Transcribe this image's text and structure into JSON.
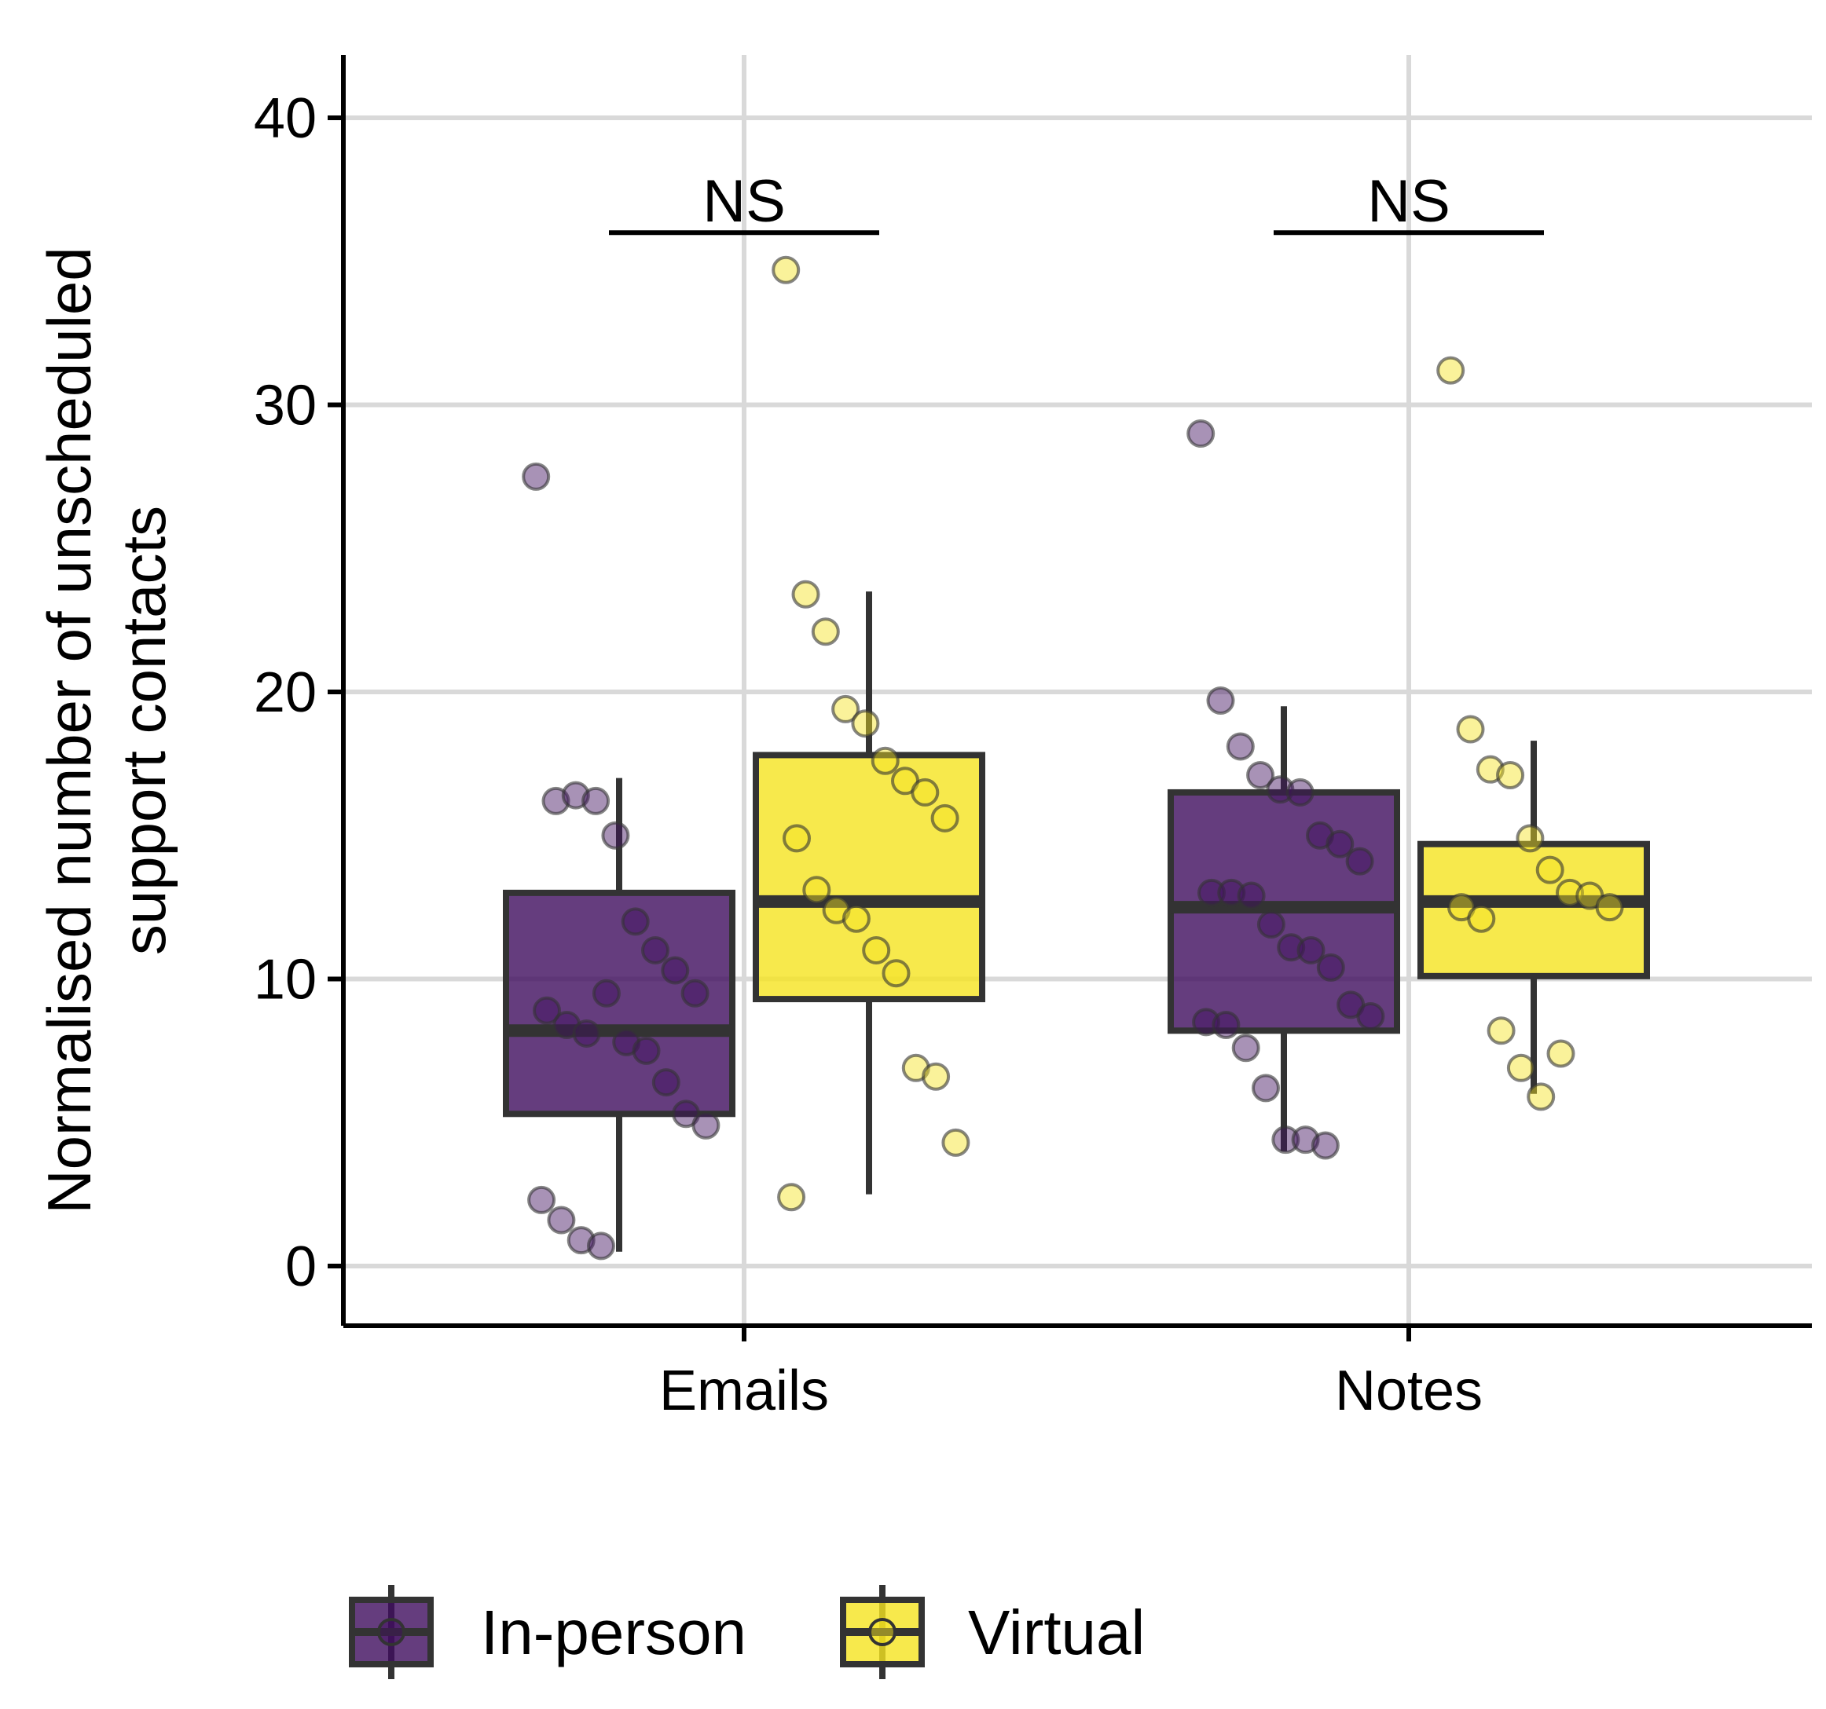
{
  "colors": {
    "in_person": "#3f0d5e",
    "virtual": "#f5e31f",
    "box_outline": "#333333",
    "grid": "#d9d9d9",
    "axis": "#000000"
  },
  "chart_data": {
    "type": "box",
    "ylabel_lines": [
      "Normalised number of unscheduled",
      "support contacts"
    ],
    "xlabel": "",
    "ylim": [
      -2,
      42
    ],
    "yticks": [
      0,
      10,
      20,
      30,
      40
    ],
    "categories": [
      "Emails",
      "Notes"
    ],
    "grid": true,
    "legend": {
      "placement": "bottom",
      "entries": [
        "In-person",
        "Virtual"
      ]
    },
    "significance": [
      {
        "category": "Emails",
        "label": "NS",
        "y": 36
      },
      {
        "category": "Notes",
        "label": "NS",
        "y": 36
      }
    ],
    "series": [
      {
        "name": "In-person",
        "color_key": "in_person",
        "boxes": [
          {
            "category": "Emails",
            "whisker_low": 0.5,
            "q1": 5.3,
            "median": 8.2,
            "q3": 13.0,
            "whisker_high": 17.0
          },
          {
            "category": "Notes",
            "whisker_low": 4.0,
            "q1": 8.2,
            "median": 12.5,
            "q3": 16.5,
            "whisker_high": 19.5
          }
        ],
        "points": [
          {
            "category": "Emails",
            "y": [
              27.5,
              16.2,
              16.4,
              16.2,
              15.0,
              12.0,
              11.0,
              10.3,
              9.5,
              8.9,
              8.4,
              8.1,
              9.5,
              7.8,
              7.5,
              6.4,
              5.3,
              4.9,
              2.3,
              1.6,
              0.9,
              0.7
            ]
          },
          {
            "category": "Notes",
            "y": [
              29.0,
              19.7,
              18.1,
              17.1,
              16.6,
              16.5,
              15.0,
              14.7,
              14.1,
              13.0,
              13.0,
              12.9,
              11.9,
              11.1,
              11.0,
              10.4,
              9.1,
              8.7,
              8.5,
              8.4,
              7.6,
              6.2,
              4.4,
              4.4,
              4.2
            ]
          }
        ]
      },
      {
        "name": "Virtual",
        "color_key": "virtual",
        "boxes": [
          {
            "category": "Emails",
            "whisker_low": 2.5,
            "q1": 9.3,
            "median": 12.7,
            "q3": 17.8,
            "whisker_high": 23.5
          },
          {
            "category": "Notes",
            "whisker_low": 6.0,
            "q1": 10.1,
            "median": 12.7,
            "q3": 14.7,
            "whisker_high": 18.3
          }
        ],
        "points": [
          {
            "category": "Emails",
            "y": [
              34.7,
              23.4,
              22.1,
              19.4,
              18.9,
              17.6,
              16.9,
              16.5,
              15.6,
              14.9,
              13.1,
              12.4,
              12.1,
              11.0,
              10.2,
              6.9,
              6.6,
              4.3,
              2.4
            ]
          },
          {
            "category": "Notes",
            "y": [
              31.2,
              18.7,
              17.3,
              17.1,
              14.9,
              13.8,
              13.0,
              12.9,
              12.5,
              12.5,
              12.1,
              8.2,
              6.9,
              5.9,
              7.4
            ]
          }
        ]
      }
    ]
  }
}
